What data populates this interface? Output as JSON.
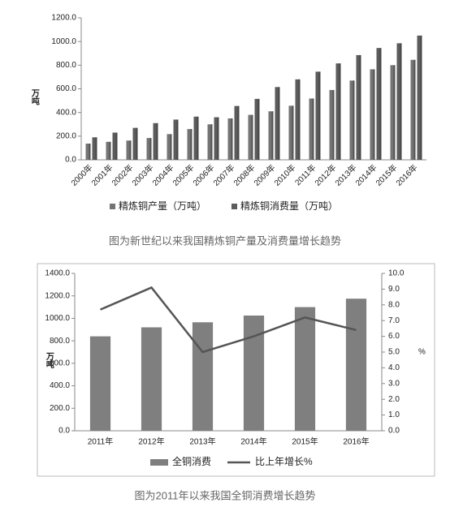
{
  "chart_data": [
    {
      "type": "bar",
      "caption": "图为新世纪以来我国精炼铜产量及消费量增长趋势",
      "y_label": "万吨",
      "categories": [
        "2000年",
        "2001年",
        "2002年",
        "2003年",
        "2004年",
        "2005年",
        "2006年",
        "2007年",
        "2008年",
        "2009年",
        "2010年",
        "2011年",
        "2012年",
        "2013年",
        "2014年",
        "2015年",
        "2016年"
      ],
      "series": [
        {
          "name": "精炼铜产量（万吨）",
          "color": "#747474",
          "values": [
            137,
            152,
            163,
            184,
            217,
            260,
            300,
            350,
            380,
            410,
            457,
            518,
            590,
            670,
            765,
            800,
            845
          ]
        },
        {
          "name": "精炼铜消费量（万吨）",
          "color": "#5c5c5c",
          "values": [
            190,
            230,
            270,
            310,
            340,
            365,
            360,
            455,
            515,
            615,
            680,
            745,
            815,
            885,
            945,
            985,
            1050
          ]
        }
      ],
      "ylim": [
        0,
        1200
      ],
      "yticks": [
        {
          "value": 0,
          "label": "0.0"
        },
        {
          "value": 200,
          "label": "200.0"
        },
        {
          "value": 400,
          "label": "400.0"
        },
        {
          "value": 600,
          "label": "600.0"
        },
        {
          "value": 800,
          "label": "800.0"
        },
        {
          "value": 1000,
          "label": "1000.0"
        },
        {
          "value": 1200,
          "label": "1200.0"
        }
      ]
    },
    {
      "type": "bar",
      "caption": "图为2011年以来我国全铜消费增长趋势",
      "y_label": "万吨",
      "y2_label": "%",
      "categories": [
        "2011年",
        "2012年",
        "2013年",
        "2014年",
        "2015年",
        "2016年"
      ],
      "series": [
        {
          "name": "全铜消费",
          "color": "#7f7f7f",
          "values": [
            840,
            920,
            965,
            1025,
            1100,
            1175
          ]
        },
        {
          "name": "比上年增长%",
          "color": "#555555",
          "type": "line",
          "axis": "y2",
          "values": [
            7.7,
            9.1,
            5.0,
            6.0,
            7.2,
            6.4
          ]
        }
      ],
      "ylim": [
        0,
        1400
      ],
      "yticks": [
        {
          "value": 0,
          "label": "0.0"
        },
        {
          "value": 200,
          "label": "200.0"
        },
        {
          "value": 400,
          "label": "400.0"
        },
        {
          "value": 600,
          "label": "600.0"
        },
        {
          "value": 800,
          "label": "800.0"
        },
        {
          "value": 1000,
          "label": "1000.0"
        },
        {
          "value": 1200,
          "label": "1200.0"
        },
        {
          "value": 1400,
          "label": "1400.0"
        }
      ],
      "y2lim": [
        0,
        10
      ],
      "y2ticks": [
        {
          "value": 0,
          "label": "0.0"
        },
        {
          "value": 1,
          "label": "1.0"
        },
        {
          "value": 2,
          "label": "2.0"
        },
        {
          "value": 3,
          "label": "3.0"
        },
        {
          "value": 4,
          "label": "4.0"
        },
        {
          "value": 5,
          "label": "5.0"
        },
        {
          "value": 6,
          "label": "6.0"
        },
        {
          "value": 7,
          "label": "7.0"
        },
        {
          "value": 8,
          "label": "8.0"
        },
        {
          "value": 9,
          "label": "9.0"
        },
        {
          "value": 10,
          "label": "10.0"
        }
      ]
    }
  ]
}
